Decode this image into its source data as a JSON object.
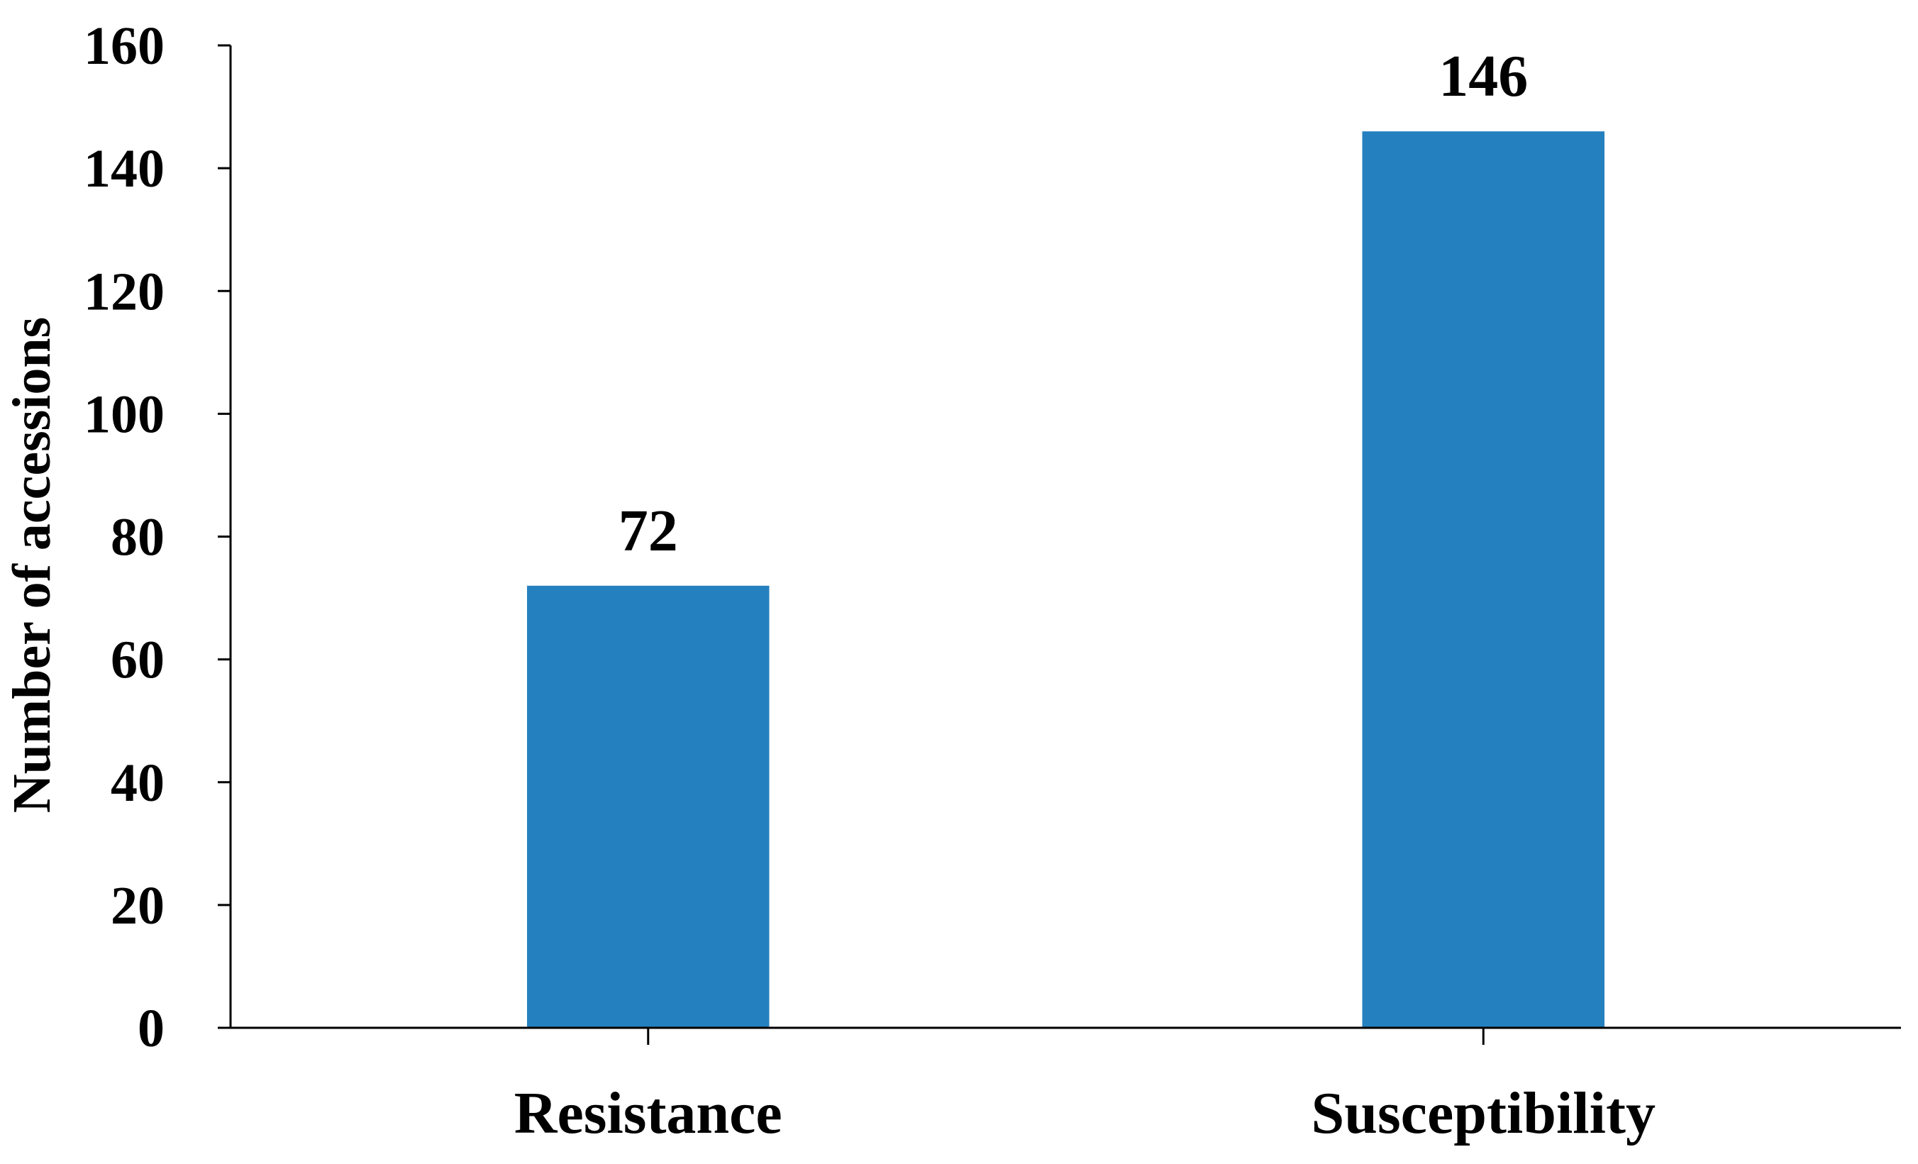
{
  "chart_data": {
    "type": "bar",
    "categories": [
      "Resistance",
      "Susceptibility"
    ],
    "values": [
      72,
      146
    ],
    "data_labels": [
      "72",
      "146"
    ],
    "title": "",
    "xlabel": "",
    "ylabel": "Number of accessions",
    "ylim": [
      0,
      160
    ],
    "yticks": [
      0,
      20,
      40,
      60,
      80,
      100,
      120,
      140,
      160
    ],
    "ytick_labels": [
      "0",
      "20",
      "40",
      "60",
      "80",
      "100",
      "120",
      "140",
      "160"
    ],
    "grid": false,
    "legend": "none",
    "bar_color": "#2580BF",
    "axis_color": "#000000"
  }
}
